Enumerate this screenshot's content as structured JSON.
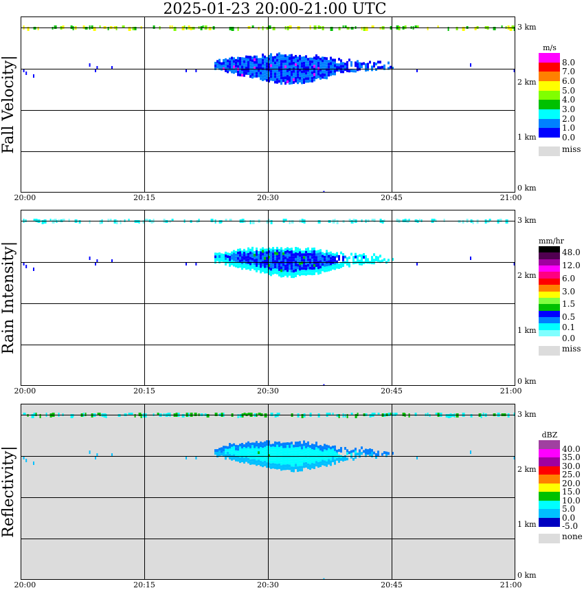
{
  "title": "2025-01-23   20:00-21:00 UTC",
  "chart_data": [
    {
      "type": "heatmap",
      "ylabel": "Fall Velocity",
      "xlabel": "",
      "x_ticks": [
        "20:00",
        "20:15",
        "20:30",
        "20:45",
        "21:00"
      ],
      "y_ticks": [
        "3 km",
        "2 km",
        "1 km",
        "0 km"
      ],
      "background": "#ffffff",
      "legend": {
        "unit": "m/s",
        "colors": [
          "#ff00ff",
          "#ff0000",
          "#ff8000",
          "#ffff00",
          "#80ff00",
          "#00c000",
          "#00ffff",
          "#0080ff",
          "#0000ff"
        ],
        "labels": [
          "8.0",
          "7.0",
          "6.0",
          "5.0",
          "4.0",
          "3.0",
          "2.0",
          "1.0",
          "0.0"
        ],
        "missing_label": "miss",
        "missing_color": "#dcdcdc"
      },
      "palette": {
        "core": "#0000ff",
        "body": "#0080ff",
        "rare": "#ff00ff",
        "noise": [
          "#80ff00",
          "#00c000",
          "#ffff00"
        ]
      }
    },
    {
      "type": "heatmap",
      "ylabel": "Rain Intensity",
      "xlabel": "",
      "x_ticks": [
        "20:00",
        "20:15",
        "20:30",
        "20:45",
        "21:00"
      ],
      "y_ticks": [
        "3 km",
        "2 km",
        "1 km",
        "0 km"
      ],
      "background": "#ffffff",
      "legend": {
        "unit": "mm/hr",
        "colors": [
          "#000000",
          "#500050",
          "#a000a0",
          "#ff00ff",
          "#ff0080",
          "#ff0000",
          "#ff8000",
          "#ffff00",
          "#80ff40",
          "#00c000",
          "#0000ff",
          "#0080ff",
          "#00ffff",
          "#80ffff"
        ],
        "labels": [
          "48.0",
          "",
          "12.0",
          "",
          "6.0",
          "",
          "3.0",
          "",
          "1.5",
          "",
          "0.5",
          "",
          "0.1",
          "0.0"
        ],
        "missing_label": "miss",
        "missing_color": "#dcdcdc"
      },
      "palette": {
        "core": "#0000ff",
        "body": "#0080ff",
        "edge": "#00ffff",
        "rare": "#00c000",
        "noise": [
          "#00ffff",
          "#80ffff"
        ]
      }
    },
    {
      "type": "heatmap",
      "ylabel": "Reflectivity",
      "xlabel": "",
      "x_ticks": [
        "20:00",
        "20:15",
        "20:30",
        "20:45",
        "21:00"
      ],
      "y_ticks": [
        "3 km",
        "2 km",
        "1 km",
        "0 km"
      ],
      "background": "#dcdcdc",
      "legend": {
        "unit": "dBZ",
        "colors": [
          "#a040a0",
          "#ff00ff",
          "#a000a0",
          "#ff0000",
          "#ff8000",
          "#ffff00",
          "#00c000",
          "#00ffff",
          "#00c0ff",
          "#0000c0"
        ],
        "labels": [
          "40.0",
          "35.0",
          "30.0",
          "25.0",
          "20.0",
          "15.0",
          "10.0",
          "5.0",
          "0.0",
          "-5.0"
        ],
        "missing_label": "none",
        "missing_color": "#dcdcdc"
      },
      "palette": {
        "core": "#00ffff",
        "body": "#00ffff",
        "edge": "#00c0ff",
        "rare": "#00c000",
        "noise": [
          "#00c000",
          "#00ffff"
        ]
      }
    }
  ],
  "echo": {
    "time_minutes": [
      24,
      25,
      26,
      27,
      28,
      29,
      30,
      31,
      32,
      33,
      34,
      35,
      36,
      37,
      38,
      39,
      40,
      41,
      42,
      43,
      44,
      45
    ],
    "top_km": [
      2.38,
      2.42,
      2.45,
      2.46,
      2.46,
      2.47,
      2.47,
      2.48,
      2.48,
      2.47,
      2.47,
      2.46,
      2.44,
      2.42,
      2.4,
      2.38,
      2.36,
      2.36,
      2.34,
      2.34,
      2.32,
      2.3
    ],
    "base_km": [
      2.25,
      2.2,
      2.15,
      2.12,
      2.1,
      2.06,
      2.03,
      2.0,
      1.98,
      1.98,
      2.0,
      2.02,
      2.05,
      2.08,
      2.12,
      2.15,
      2.18,
      2.2,
      2.22,
      2.22,
      2.24,
      2.25
    ],
    "noise_band_km": 3.0,
    "x_range_minutes": [
      0,
      60
    ],
    "y_range_km": [
      0,
      3.2
    ]
  }
}
